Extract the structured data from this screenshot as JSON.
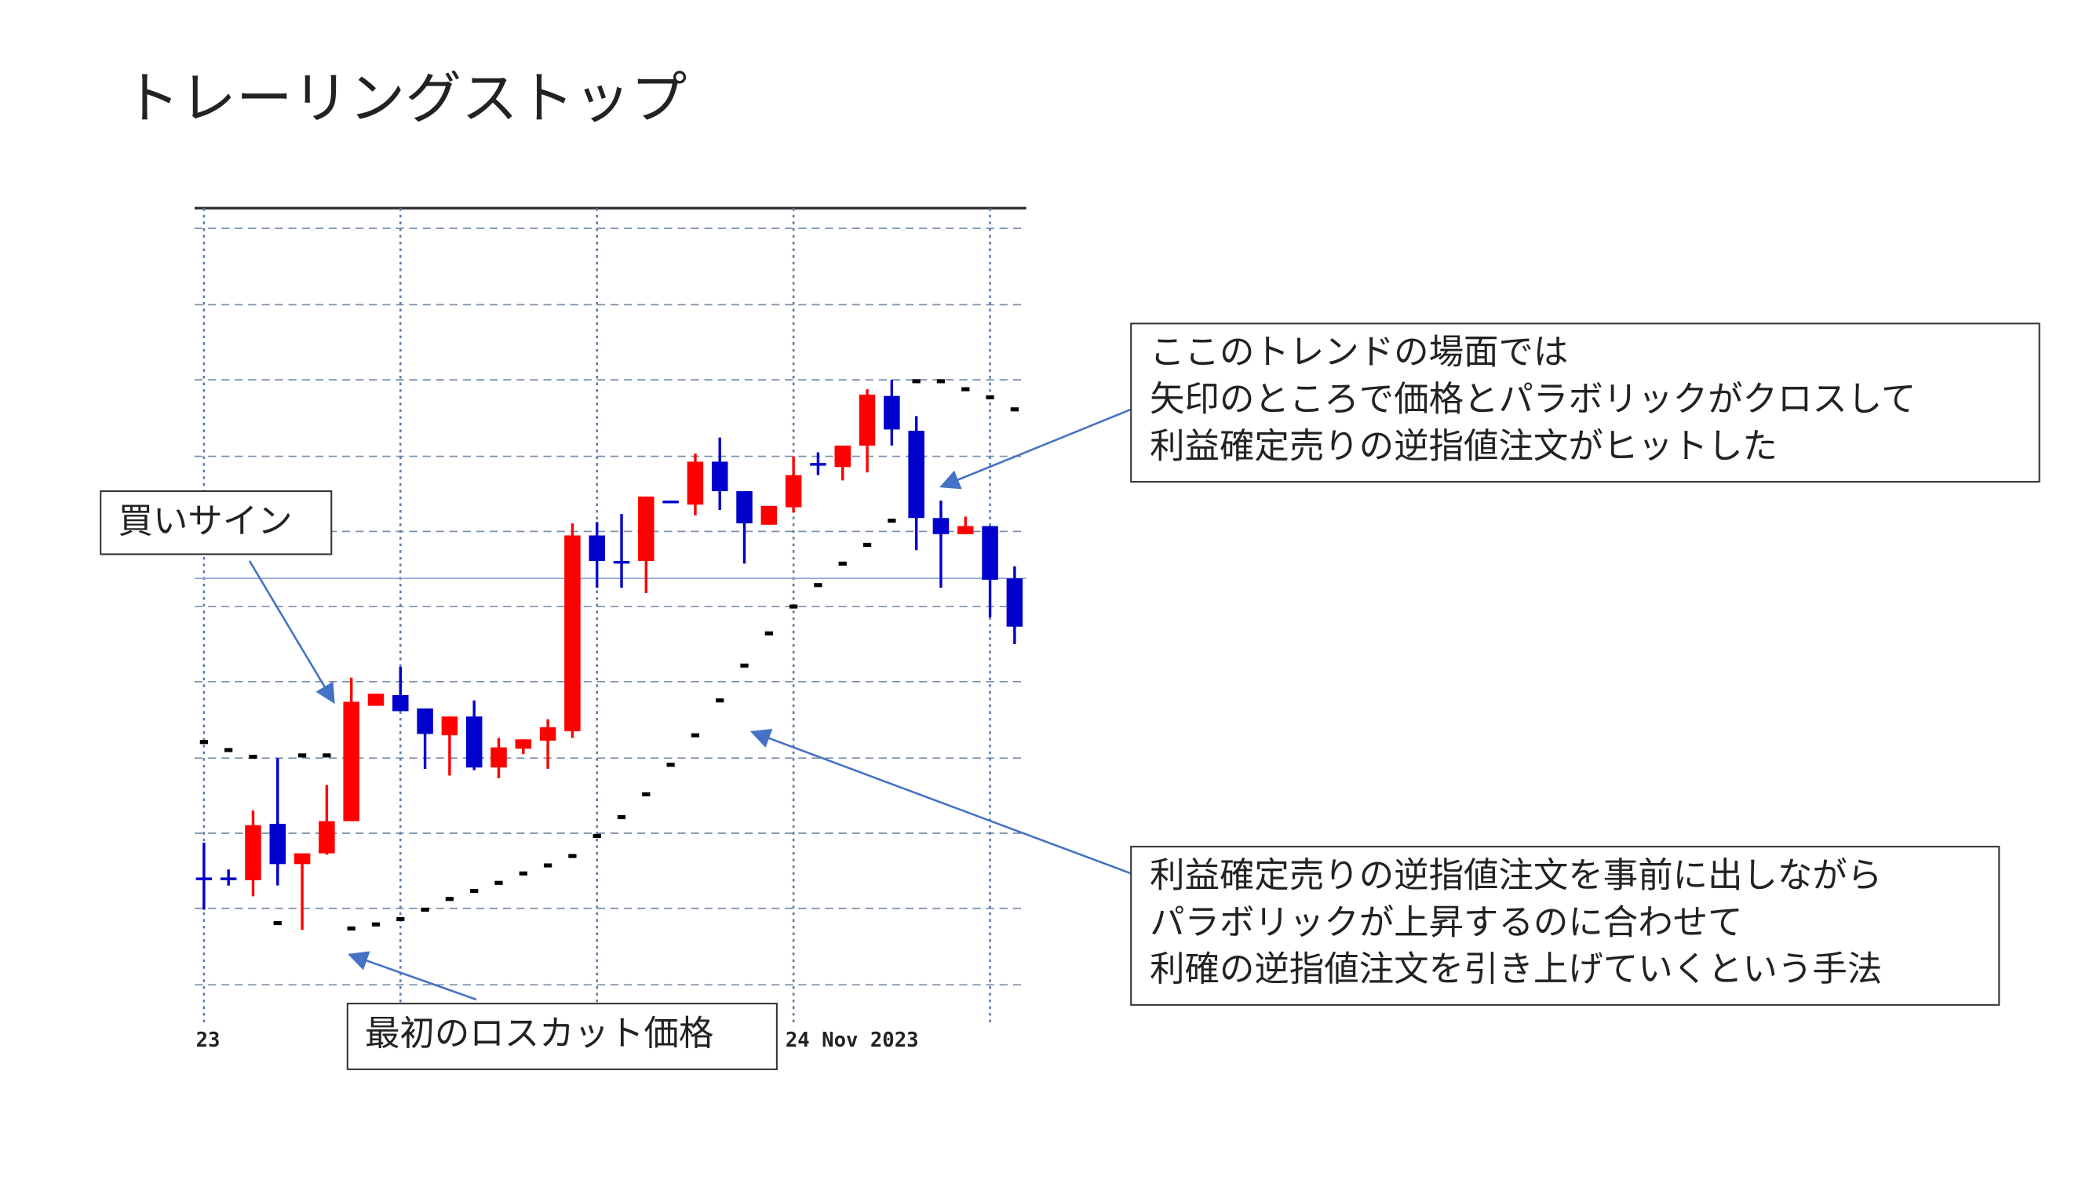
{
  "title": "トレーリングストップ",
  "annotations": [
    {
      "lines": [
        "買いサイン"
      ]
    },
    {
      "lines": [
        "ここのトレンドの場面では",
        "矢印のところで価格とパラボリックがクロスして",
        "利益確定売りの逆指値注文がヒットした"
      ]
    },
    {
      "lines": [
        "利益確定売りの逆指値注文を事前に出しながら",
        "パラボリックが上昇するのに合わせて",
        "利確の逆指値注文を引き上げていくという手法"
      ]
    },
    {
      "lines": [
        "最初のロスカット価格"
      ]
    }
  ],
  "chart_data": {
    "type": "candlestick",
    "categories": [
      "23",
      null,
      null,
      null,
      null,
      null,
      null,
      null,
      null,
      null,
      null,
      null,
      null,
      null,
      null,
      null,
      null,
      null,
      null,
      null,
      null,
      null,
      null,
      null,
      "24 Nov 2023",
      null,
      null,
      null,
      null,
      null,
      null,
      null,
      null,
      null
    ],
    "open": [
      111,
      111,
      109,
      151,
      121,
      129,
      153,
      239,
      247,
      237,
      217,
      231,
      193,
      207,
      213,
      220,
      366,
      347,
      347,
      392,
      389,
      421,
      399,
      374,
      387,
      420,
      417,
      433,
      470,
      444,
      379,
      367,
      373,
      334
    ],
    "high": [
      137,
      117,
      161,
      200,
      129,
      180,
      260,
      248,
      268,
      237,
      231,
      243,
      215,
      214,
      229,
      375,
      376,
      382,
      395,
      392,
      427,
      439,
      399,
      388,
      425,
      428,
      433,
      475,
      482,
      455,
      392,
      380,
      373,
      343
    ],
    "low": [
      87,
      105,
      97,
      105,
      72,
      128,
      153,
      239,
      235,
      192,
      187,
      191,
      185,
      203,
      192,
      215,
      327,
      327,
      323,
      390,
      381,
      385,
      345,
      374,
      383,
      411,
      407,
      413,
      433,
      355,
      327,
      367,
      305,
      285
    ],
    "close": [
      111,
      111,
      150,
      121,
      129,
      153,
      242,
      248,
      235,
      218,
      231,
      193,
      208,
      214,
      223,
      366,
      347,
      347,
      395,
      390,
      421,
      399,
      375,
      388,
      411,
      418,
      433,
      471,
      445,
      379,
      367,
      373,
      333,
      298
    ],
    "up_color": "#ff0000",
    "down_color": "#0000cc",
    "sar": {
      "color": "#000000",
      "values": [
        212,
        206,
        201,
        77,
        202,
        202,
        73,
        76,
        80,
        87,
        95,
        101,
        107,
        114,
        120,
        127,
        142,
        156,
        173,
        195,
        217,
        243,
        269,
        293,
        313,
        329,
        345,
        359,
        377,
        481,
        481,
        475,
        469,
        460
      ]
    },
    "price_line": {
      "value": 334,
      "color": "#8ea3d6"
    },
    "ylim": [
      0,
      610
    ],
    "yticks": [
      31,
      88,
      144,
      200,
      257,
      313,
      369,
      425,
      482,
      538,
      595
    ],
    "grid": true
  }
}
